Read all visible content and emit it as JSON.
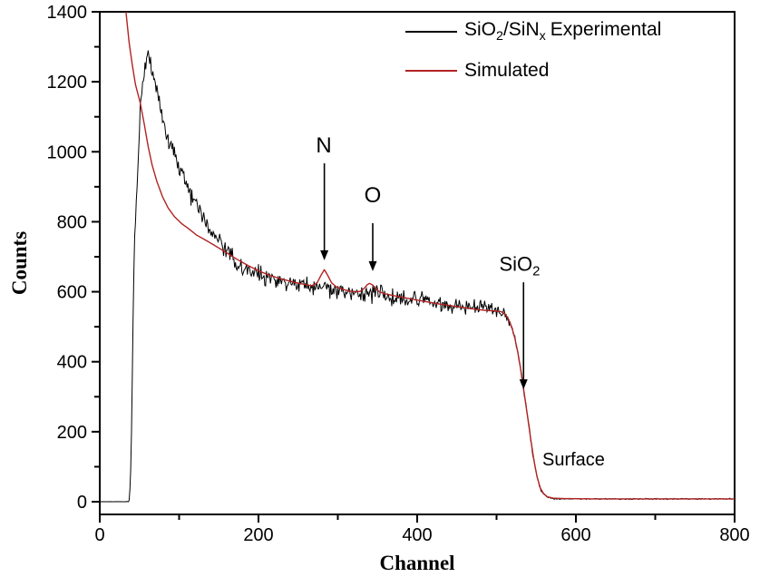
{
  "figure": {
    "background": "#ffffff",
    "frame_color": "#000000"
  },
  "legend": {
    "experimental": {
      "pre": "SiO",
      "sub1": "2",
      "mid": "/SiN",
      "sub2": "x",
      "post": "Experimental",
      "color": "#000000"
    },
    "simulated": {
      "label": "Simulated",
      "color": "#b22222"
    }
  },
  "annotation_text": {
    "n": "N",
    "o": "O",
    "sio2_pre": "SiO",
    "sio2_sub": "2",
    "surface": "Surface"
  },
  "chart_data": {
    "type": "line",
    "title": "",
    "xlabel": "Channel",
    "ylabel": "Counts",
    "xlim": [
      0,
      800
    ],
    "ylim": [
      0,
      1400
    ],
    "grid": false,
    "legend_position": "top-right-inside",
    "x_major_ticks": [
      0,
      200,
      400,
      600,
      800
    ],
    "x_minor_ticks": [
      100,
      300,
      500,
      700
    ],
    "y_major_ticks": [
      0,
      200,
      400,
      600,
      800,
      1000,
      1200,
      1400
    ],
    "y_minor_ticks": [
      100,
      300,
      500,
      700,
      900,
      1100,
      1300
    ],
    "series": [
      {
        "name": "SiO2/SiNx Experimental",
        "color": "#000000",
        "line_width": 1,
        "style": "noisy",
        "anchors": [
          [
            0,
            0
          ],
          [
            36,
            0
          ],
          [
            37,
            6
          ],
          [
            38,
            30
          ],
          [
            39,
            90
          ],
          [
            40,
            200
          ],
          [
            41,
            360
          ],
          [
            42,
            520
          ],
          [
            43,
            660
          ],
          [
            44,
            760
          ],
          [
            46,
            860
          ],
          [
            48,
            950
          ],
          [
            50,
            1060
          ],
          [
            51,
            1120
          ],
          [
            53,
            1175
          ],
          [
            56,
            1225
          ],
          [
            59,
            1262
          ],
          [
            61,
            1280
          ],
          [
            63,
            1266
          ],
          [
            66,
            1235
          ],
          [
            69,
            1200
          ],
          [
            73,
            1160
          ],
          [
            77,
            1120
          ],
          [
            81,
            1082
          ],
          [
            86,
            1043
          ],
          [
            91,
            1008
          ],
          [
            96,
            975
          ],
          [
            102,
            940
          ],
          [
            108,
            908
          ],
          [
            115,
            873
          ],
          [
            122,
            843
          ],
          [
            130,
            812
          ],
          [
            138,
            785
          ],
          [
            146,
            758
          ],
          [
            154,
            734
          ],
          [
            163,
            708
          ],
          [
            172,
            687
          ],
          [
            182,
            668
          ],
          [
            193,
            654
          ],
          [
            205,
            645
          ],
          [
            220,
            636
          ],
          [
            235,
            628
          ],
          [
            250,
            621
          ],
          [
            265,
            616
          ],
          [
            283,
            611
          ],
          [
            300,
            605
          ],
          [
            318,
            600
          ],
          [
            335,
            596
          ],
          [
            352,
            592
          ],
          [
            370,
            587
          ],
          [
            388,
            581
          ],
          [
            405,
            575
          ],
          [
            422,
            569
          ],
          [
            440,
            563
          ],
          [
            458,
            557
          ],
          [
            475,
            552
          ],
          [
            490,
            548
          ],
          [
            500,
            545
          ],
          [
            507,
            542
          ],
          [
            511,
            535
          ],
          [
            515,
            521
          ],
          [
            519,
            499
          ],
          [
            523,
            467
          ],
          [
            527,
            424
          ],
          [
            531,
            369
          ],
          [
            535,
            307
          ],
          [
            539,
            244
          ],
          [
            543,
            179
          ],
          [
            547,
            119
          ],
          [
            551,
            71
          ],
          [
            555,
            39
          ],
          [
            559,
            23
          ],
          [
            564,
            13
          ],
          [
            572,
            9
          ],
          [
            585,
            8
          ],
          [
            620,
            8
          ],
          [
            700,
            8
          ],
          [
            800,
            8
          ]
        ],
        "noise_segments": [
          [
            0,
            36,
            0.6
          ],
          [
            37,
            44,
            6
          ],
          [
            45,
            60,
            14
          ],
          [
            61,
            500,
            20
          ],
          [
            501,
            516,
            12
          ],
          [
            517,
            548,
            6
          ],
          [
            549,
            560,
            3
          ],
          [
            561,
            800,
            1.3
          ]
        ]
      },
      {
        "name": "Simulated",
        "color": "#b22222",
        "line_width": 1.4,
        "style": "smooth",
        "anchors": [
          [
            33,
            1400
          ],
          [
            37,
            1312
          ],
          [
            41,
            1248
          ],
          [
            45,
            1192
          ],
          [
            51,
            1140
          ],
          [
            56,
            1080
          ],
          [
            61,
            1015
          ],
          [
            66,
            962
          ],
          [
            72,
            915
          ],
          [
            79,
            872
          ],
          [
            86,
            840
          ],
          [
            94,
            815
          ],
          [
            103,
            795
          ],
          [
            112,
            780
          ],
          [
            122,
            762
          ],
          [
            133,
            748
          ],
          [
            145,
            732
          ],
          [
            158,
            714
          ],
          [
            172,
            694
          ],
          [
            186,
            676
          ],
          [
            200,
            660
          ],
          [
            215,
            646
          ],
          [
            230,
            636
          ],
          [
            245,
            627
          ],
          [
            258,
            621
          ],
          [
            268,
            617
          ],
          [
            274,
            626
          ],
          [
            279,
            648
          ],
          [
            283,
            663
          ],
          [
            287,
            648
          ],
          [
            292,
            626
          ],
          [
            298,
            614
          ],
          [
            306,
            607
          ],
          [
            314,
            602
          ],
          [
            322,
            600
          ],
          [
            328,
            601
          ],
          [
            333,
            609
          ],
          [
            337,
            620
          ],
          [
            340,
            624
          ],
          [
            344,
            619
          ],
          [
            348,
            608
          ],
          [
            353,
            599
          ],
          [
            360,
            594
          ],
          [
            370,
            589
          ],
          [
            382,
            584
          ],
          [
            395,
            578
          ],
          [
            410,
            572
          ],
          [
            425,
            566
          ],
          [
            440,
            561
          ],
          [
            455,
            556
          ],
          [
            470,
            551
          ],
          [
            485,
            547
          ],
          [
            498,
            545
          ],
          [
            506,
            543
          ],
          [
            511,
            536
          ],
          [
            515,
            522
          ],
          [
            519,
            500
          ],
          [
            523,
            468
          ],
          [
            527,
            425
          ],
          [
            531,
            370
          ],
          [
            535,
            308
          ],
          [
            539,
            245
          ],
          [
            543,
            180
          ],
          [
            547,
            120
          ],
          [
            551,
            72
          ],
          [
            555,
            40
          ],
          [
            559,
            24
          ],
          [
            564,
            14
          ],
          [
            572,
            10
          ],
          [
            585,
            9
          ],
          [
            620,
            8
          ],
          [
            700,
            8
          ],
          [
            800,
            8
          ]
        ]
      }
    ],
    "annotations": [
      {
        "id": "n",
        "text": "N",
        "channel": 283,
        "arrow_from_counts": 967,
        "arrow_to_counts": 690
      },
      {
        "id": "o",
        "text": "O",
        "channel": 344,
        "arrow_from_counts": 796,
        "arrow_to_counts": 659
      },
      {
        "id": "sio2",
        "text": "SiO2",
        "channel": 534,
        "arrow_from_counts": 627,
        "arrow_to_counts": 321
      },
      {
        "id": "surface",
        "text": "Surface",
        "channel": 602,
        "counts": 119
      }
    ]
  }
}
